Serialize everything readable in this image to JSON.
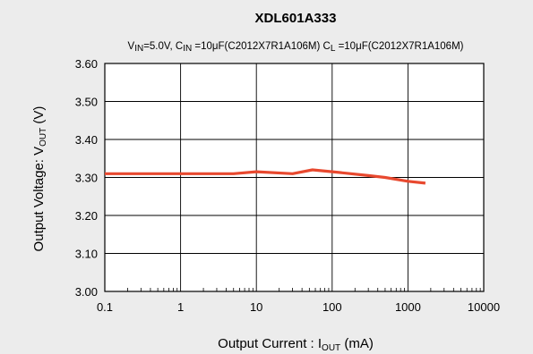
{
  "chart_data": {
    "type": "line",
    "title": "XDL601A333",
    "subtitle_parts": {
      "vin_main": "V",
      "vin_sub": "IN",
      "vin_rest": "=5.0V, C",
      "cin_sub": "IN",
      "cin_rest": " =10μF(C2012X7R1A106M)  C",
      "cl_sub": "L",
      "cl_rest": " =10μF(C2012X7R1A106M)"
    },
    "xlabel_parts": {
      "main": "Output Current : I",
      "sub": "OUT",
      "rest": " (mA)"
    },
    "ylabel_parts": {
      "main": "Output Voltage: V",
      "sub": "OUT",
      "rest": " (V)"
    },
    "x_scale": "log",
    "xlim": [
      0.1,
      10000
    ],
    "ylim": [
      3.0,
      3.6
    ],
    "x_ticks": [
      0.1,
      1,
      10,
      100,
      1000,
      10000
    ],
    "x_tick_labels": [
      "0.1",
      "1",
      "10",
      "100",
      "1000",
      "10000"
    ],
    "y_ticks": [
      3.0,
      3.1,
      3.2,
      3.3,
      3.4,
      3.5,
      3.6
    ],
    "y_tick_labels": [
      "3.00",
      "3.10",
      "3.20",
      "3.30",
      "3.40",
      "3.50",
      "3.60"
    ],
    "grid": true,
    "series": [
      {
        "color": "#e8492f",
        "x": [
          0.1,
          1,
          5,
          10,
          30,
          55,
          100,
          300,
          500,
          1000,
          1700
        ],
        "y": [
          3.31,
          3.31,
          3.31,
          3.315,
          3.31,
          3.32,
          3.315,
          3.305,
          3.3,
          3.29,
          3.285
        ]
      }
    ]
  }
}
